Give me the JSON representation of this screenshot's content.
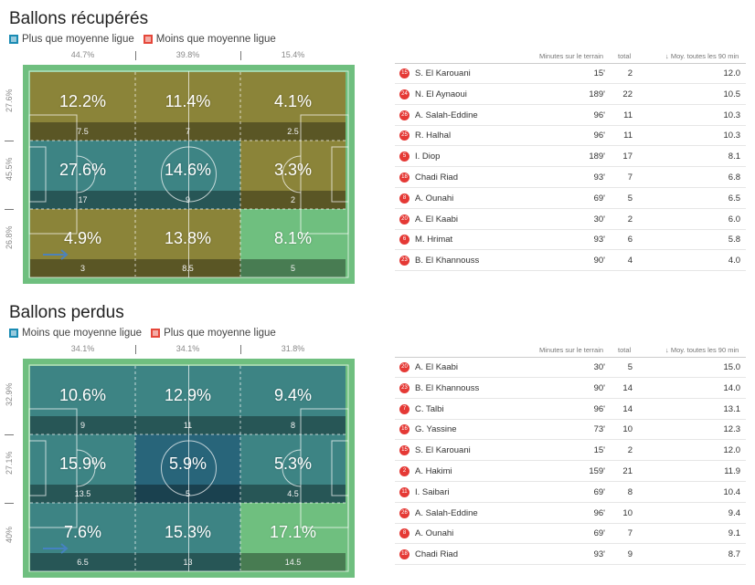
{
  "colors": {
    "above_avg": "#1a8bb3",
    "below_avg": "#e5473a",
    "recovered_warm": "#8a7a2e",
    "lost_cool": "#2e6f88",
    "pitch_green": "#6fbf7f",
    "badge_red": "#e53935"
  },
  "recovered": {
    "title": "Ballons récupérés",
    "legend": [
      {
        "label": "Plus que moyenne ligue",
        "color": "#1a8bb3"
      },
      {
        "label": "Moins que moyenne ligue",
        "color": "#e5473a"
      }
    ],
    "col_pcts": [
      "44.7%",
      "39.8%",
      "15.4%"
    ],
    "row_pcts": [
      "27.6%",
      "45.5%",
      "26.8%"
    ],
    "grid": [
      [
        {
          "pct": "12.2%",
          "count": "7.5",
          "tone": "warm"
        },
        {
          "pct": "11.4%",
          "count": "7",
          "tone": "warm"
        },
        {
          "pct": "4.1%",
          "count": "2.5",
          "tone": "warm"
        }
      ],
      [
        {
          "pct": "27.6%",
          "count": "17",
          "tone": "cool"
        },
        {
          "pct": "14.6%",
          "count": "9",
          "tone": "cool"
        },
        {
          "pct": "3.3%",
          "count": "2",
          "tone": "warm"
        }
      ],
      [
        {
          "pct": "4.9%",
          "count": "3",
          "tone": "warm"
        },
        {
          "pct": "13.8%",
          "count": "8.5",
          "tone": "warm"
        },
        {
          "pct": "8.1%",
          "count": "5",
          "tone": "green"
        }
      ]
    ],
    "table": {
      "headers": {
        "minutes": "Minutes sur le terrain",
        "total": "total",
        "avg": "↓ Moy. toutes les 90 min"
      },
      "rows": [
        {
          "num": "15",
          "name": "S. El Karouani",
          "minutes": "15'",
          "total": "2",
          "avg": "12.0"
        },
        {
          "num": "24",
          "name": "N. El Aynaoui",
          "minutes": "189'",
          "total": "22",
          "avg": "10.5"
        },
        {
          "num": "26",
          "name": "A. Salah-Eddine",
          "minutes": "96'",
          "total": "11",
          "avg": "10.3"
        },
        {
          "num": "25",
          "name": "R. Halhal",
          "minutes": "96'",
          "total": "11",
          "avg": "10.3"
        },
        {
          "num": "5",
          "name": "I. Diop",
          "minutes": "189'",
          "total": "17",
          "avg": "8.1"
        },
        {
          "num": "18",
          "name": "Chadi Riad",
          "minutes": "93'",
          "total": "7",
          "avg": "6.8"
        },
        {
          "num": "8",
          "name": "A. Ounahi",
          "minutes": "69'",
          "total": "5",
          "avg": "6.5"
        },
        {
          "num": "20",
          "name": "A. El Kaabi",
          "minutes": "30'",
          "total": "2",
          "avg": "6.0"
        },
        {
          "num": "6",
          "name": "M. Hrimat",
          "minutes": "93'",
          "total": "6",
          "avg": "5.8"
        },
        {
          "num": "23",
          "name": "B. El Khannouss",
          "minutes": "90'",
          "total": "4",
          "avg": "4.0"
        }
      ]
    }
  },
  "lost": {
    "title": "Ballons perdus",
    "legend": [
      {
        "label": "Moins que moyenne ligue",
        "color": "#1a8bb3"
      },
      {
        "label": "Plus que moyenne ligue",
        "color": "#e5473a"
      }
    ],
    "col_pcts": [
      "34.1%",
      "34.1%",
      "31.8%"
    ],
    "row_pcts": [
      "32.9%",
      "27.1%",
      "40%"
    ],
    "grid": [
      [
        {
          "pct": "10.6%",
          "count": "9",
          "tone": "cool"
        },
        {
          "pct": "12.9%",
          "count": "11",
          "tone": "cool"
        },
        {
          "pct": "9.4%",
          "count": "8",
          "tone": "cool"
        }
      ],
      [
        {
          "pct": "15.9%",
          "count": "13.5",
          "tone": "cool"
        },
        {
          "pct": "5.9%",
          "count": "5",
          "tone": "deep"
        },
        {
          "pct": "5.3%",
          "count": "4.5",
          "tone": "cool"
        }
      ],
      [
        {
          "pct": "7.6%",
          "count": "6.5",
          "tone": "cool"
        },
        {
          "pct": "15.3%",
          "count": "13",
          "tone": "cool"
        },
        {
          "pct": "17.1%",
          "count": "14.5",
          "tone": "green"
        }
      ]
    ],
    "table": {
      "headers": {
        "minutes": "Minutes sur le terrain",
        "total": "total",
        "avg": "↓ Moy. toutes les 90 min"
      },
      "rows": [
        {
          "num": "20",
          "name": "A. El Kaabi",
          "minutes": "30'",
          "total": "5",
          "avg": "15.0"
        },
        {
          "num": "23",
          "name": "B. El Khannouss",
          "minutes": "90'",
          "total": "14",
          "avg": "14.0"
        },
        {
          "num": "7",
          "name": "C. Talbi",
          "minutes": "96'",
          "total": "14",
          "avg": "13.1"
        },
        {
          "num": "16",
          "name": "G. Yassine",
          "minutes": "73'",
          "total": "10",
          "avg": "12.3"
        },
        {
          "num": "15",
          "name": "S. El Karouani",
          "minutes": "15'",
          "total": "2",
          "avg": "12.0"
        },
        {
          "num": "2",
          "name": "A. Hakimi",
          "minutes": "159'",
          "total": "21",
          "avg": "11.9"
        },
        {
          "num": "11",
          "name": "I. Saibari",
          "minutes": "69'",
          "total": "8",
          "avg": "10.4"
        },
        {
          "num": "26",
          "name": "A. Salah-Eddine",
          "minutes": "96'",
          "total": "10",
          "avg": "9.4"
        },
        {
          "num": "8",
          "name": "A. Ounahi",
          "minutes": "69'",
          "total": "7",
          "avg": "9.1"
        },
        {
          "num": "18",
          "name": "Chadi Riad",
          "minutes": "93'",
          "total": "9",
          "avg": "8.7"
        }
      ]
    }
  }
}
